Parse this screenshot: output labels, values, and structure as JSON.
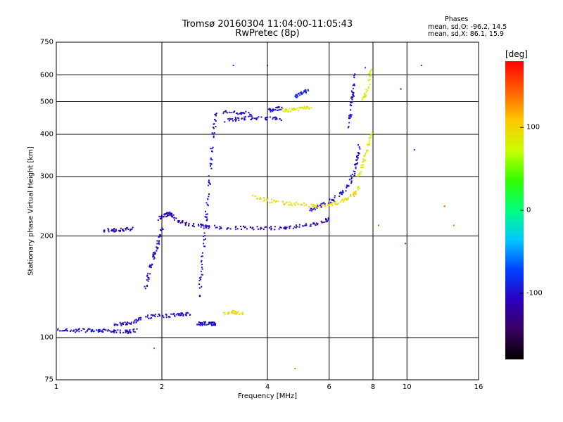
{
  "header": {
    "title_line1": "Tromsø 20160304 11:04:00-11:05:43",
    "title_line2": "RwPretec (8p)",
    "phases_label": "Phases",
    "stats_o": "mean, sd,O: -96.2, 14.5",
    "stats_x": "mean, sd,X: 86.1, 15.9"
  },
  "colorbar": {
    "unit": "[deg]",
    "ticks": [
      "100",
      "0",
      "-100"
    ],
    "range": [
      -180,
      180
    ],
    "colormap": [
      "#000000",
      "#3a0060",
      "#2a00c0",
      "#0040ff",
      "#00c8ff",
      "#00ff80",
      "#30ff00",
      "#c8ff00",
      "#ffc800",
      "#ff6000",
      "#ff0000"
    ]
  },
  "chart_data": {
    "type": "scatter",
    "title": "Tromsø 20160304 11:04:00-11:05:43",
    "subtitle": "RwPretec (8p)",
    "xlabel": "Frequency [MHz]",
    "ylabel": "Stationary phase Virtual Height [km]",
    "x_scale": "log",
    "y_scale": "log",
    "xlim": [
      1,
      16
    ],
    "ylim": [
      75,
      750
    ],
    "x_ticks": [
      "1",
      "2",
      "4",
      "6",
      "8",
      "10",
      "16"
    ],
    "y_ticks": [
      "750",
      "600",
      "500",
      "400",
      "300",
      "200",
      "100",
      "75"
    ],
    "grid": true,
    "color_variable": "phase [deg]",
    "traces": [
      {
        "x": [
          1.0,
          1.1,
          1.2,
          1.3,
          1.4,
          1.5,
          1.6,
          1.7
        ],
        "y": [
          106,
          105,
          105,
          105,
          105,
          104,
          104,
          105
        ],
        "phase": -100
      },
      {
        "x": [
          1.45,
          1.55,
          1.65,
          1.75
        ],
        "y": [
          108,
          110,
          111,
          114
        ],
        "phase": -105
      },
      {
        "x": [
          1.35,
          1.45,
          1.55,
          1.65
        ],
        "y": [
          208,
          208,
          209,
          210
        ],
        "phase": -105
      },
      {
        "x": [
          1.8,
          1.85,
          1.9,
          1.95,
          2.0
        ],
        "y": [
          140,
          160,
          175,
          190,
          210
        ],
        "phase": -110
      },
      {
        "x": [
          1.95,
          2.05,
          2.1,
          2.15
        ],
        "y": [
          225,
          230,
          234,
          230
        ],
        "phase": -110
      },
      {
        "x": [
          1.8,
          1.95,
          2.1,
          2.25,
          2.4
        ],
        "y": [
          115,
          116,
          116,
          117,
          118
        ],
        "phase": -100
      },
      {
        "x": [
          2.5,
          2.6,
          2.7,
          2.8,
          2.85
        ],
        "y": [
          110,
          110,
          110,
          110,
          110
        ],
        "phase": -100
      },
      {
        "x": [
          2.55,
          2.6,
          2.65,
          2.7,
          2.75,
          2.8,
          2.85
        ],
        "y": [
          130,
          160,
          200,
          250,
          320,
          400,
          460
        ],
        "phase": -100
      },
      {
        "x": [
          2.15,
          2.3,
          2.5,
          2.7,
          3.0,
          3.5,
          4.0,
          4.5,
          5.0,
          5.5,
          6.0
        ],
        "y": [
          225,
          218,
          215,
          213,
          212,
          211,
          211,
          212,
          214,
          218,
          225
        ],
        "phase": -115
      },
      {
        "x": [
          3.0,
          3.2,
          3.4
        ],
        "y": [
          118,
          119,
          118
        ],
        "phase": 95
      },
      {
        "x": [
          3.0,
          3.3,
          3.6,
          4.0,
          4.4
        ],
        "y": [
          440,
          445,
          448,
          447,
          445
        ],
        "phase": -105
      },
      {
        "x": [
          3.0,
          3.3,
          3.6
        ],
        "y": [
          465,
          463,
          462
        ],
        "phase": -105
      },
      {
        "x": [
          4.0,
          4.2,
          4.4
        ],
        "y": [
          470,
          475,
          478
        ],
        "phase": -100
      },
      {
        "x": [
          4.4,
          4.7,
          5.0,
          5.3
        ],
        "y": [
          470,
          473,
          477,
          482
        ],
        "phase": 90
      },
      {
        "x": [
          4.8,
          5.0,
          5.2
        ],
        "y": [
          520,
          530,
          540
        ],
        "phase": -90
      },
      {
        "x": [
          3.6,
          4.0,
          4.5,
          5.0,
          5.5,
          6.0,
          6.5,
          7.0,
          7.3
        ],
        "y": [
          262,
          255,
          250,
          248,
          246,
          247,
          253,
          263,
          278
        ],
        "phase": 95
      },
      {
        "x": [
          5.3,
          5.7,
          6.2,
          6.7,
          7.0,
          7.2,
          7.3
        ],
        "y": [
          238,
          246,
          258,
          275,
          300,
          330,
          370
        ],
        "phase": -100
      },
      {
        "x": [
          6.8,
          6.9,
          7.0,
          7.1
        ],
        "y": [
          420,
          460,
          520,
          600
        ],
        "phase": -100
      },
      {
        "x": [
          7.3,
          7.5,
          7.7,
          7.9
        ],
        "y": [
          300,
          330,
          360,
          400
        ],
        "phase": 85
      },
      {
        "x": [
          7.5,
          7.7,
          7.9
        ],
        "y": [
          510,
          540,
          620
        ],
        "phase": 80
      },
      {
        "x": [
          3.2,
          4.0,
          7.6,
          9.6,
          9.9,
          10.5,
          11.0
        ],
        "y": [
          640,
          640,
          630,
          545,
          190,
          360,
          640
        ],
        "phase": -80
      },
      {
        "x": [
          1.9,
          4.8,
          8.3,
          12.8,
          13.6
        ],
        "y": [
          93,
          81,
          215,
          245,
          215
        ],
        "phase": 150
      }
    ]
  }
}
